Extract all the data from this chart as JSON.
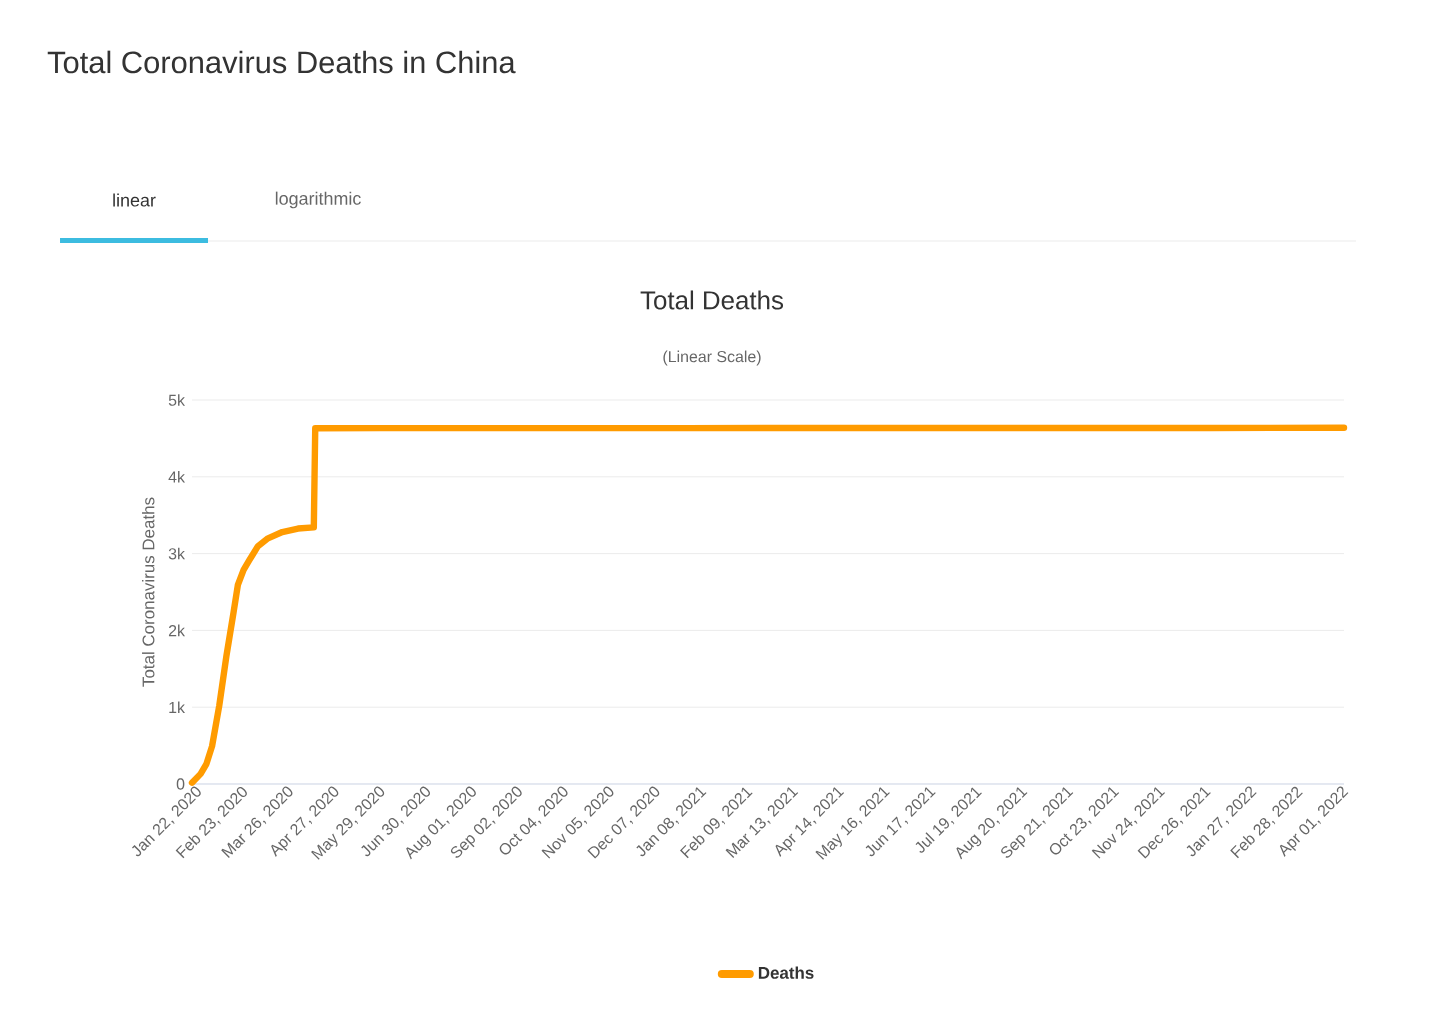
{
  "chart_data": {
    "type": "line",
    "title": "Total Deaths",
    "subtitle": "(Linear Scale)",
    "ylabel": "Total Coronavirus Deaths",
    "annotations": [
      "Total Coronavirus Deaths in China",
      "linear",
      "logarithmic"
    ],
    "x": [
      "2020-01-22",
      "2020-01-28",
      "2020-02-01",
      "2020-02-05",
      "2020-02-10",
      "2020-02-15",
      "2020-02-20",
      "2020-02-23",
      "2020-02-27",
      "2020-03-02",
      "2020-03-08",
      "2020-03-15",
      "2020-03-25",
      "2020-04-05",
      "2020-04-16",
      "2020-04-17",
      "2020-06-01",
      "2021-01-01",
      "2021-06-01",
      "2022-01-01",
      "2022-04-05"
    ],
    "series": [
      {
        "name": "Deaths",
        "color": "#ff9b00",
        "values": [
          17,
          132,
          259,
          493,
          1018,
          1666,
          2236,
          2592,
          2788,
          2915,
          3097,
          3199,
          3281,
          3326,
          3342,
          4632,
          4634,
          4634,
          4636,
          4636,
          4638
        ]
      }
    ],
    "xlim": [
      "2020-01-22",
      "2022-04-05"
    ],
    "xticks": [
      {
        "value": "2020-01-22",
        "label": "Jan 22, 2020"
      },
      {
        "value": "2020-02-23",
        "label": "Feb 23, 2020"
      },
      {
        "value": "2020-03-26",
        "label": "Mar 26, 2020"
      },
      {
        "value": "2020-04-27",
        "label": "Apr 27, 2020"
      },
      {
        "value": "2020-05-29",
        "label": "May 29, 2020"
      },
      {
        "value": "2020-06-30",
        "label": "Jun 30, 2020"
      },
      {
        "value": "2020-08-01",
        "label": "Aug 01, 2020"
      },
      {
        "value": "2020-09-02",
        "label": "Sep 02, 2020"
      },
      {
        "value": "2020-10-04",
        "label": "Oct 04, 2020"
      },
      {
        "value": "2020-11-05",
        "label": "Nov 05, 2020"
      },
      {
        "value": "2020-12-07",
        "label": "Dec 07, 2020"
      },
      {
        "value": "2021-01-08",
        "label": "Jan 08, 2021"
      },
      {
        "value": "2021-02-09",
        "label": "Feb 09, 2021"
      },
      {
        "value": "2021-03-13",
        "label": "Mar 13, 2021"
      },
      {
        "value": "2021-04-14",
        "label": "Apr 14, 2021"
      },
      {
        "value": "2021-05-16",
        "label": "May 16, 2021"
      },
      {
        "value": "2021-06-17",
        "label": "Jun 17, 2021"
      },
      {
        "value": "2021-07-19",
        "label": "Jul 19, 2021"
      },
      {
        "value": "2021-08-20",
        "label": "Aug 20, 2021"
      },
      {
        "value": "2021-09-21",
        "label": "Sep 21, 2021"
      },
      {
        "value": "2021-10-23",
        "label": "Oct 23, 2021"
      },
      {
        "value": "2021-11-24",
        "label": "Nov 24, 2021"
      },
      {
        "value": "2021-12-26",
        "label": "Dec 26, 2021"
      },
      {
        "value": "2022-01-27",
        "label": "Jan 27, 2022"
      },
      {
        "value": "2022-02-28",
        "label": "Feb 28, 2022"
      },
      {
        "value": "2022-04-01",
        "label": "Apr 01, 2022"
      }
    ],
    "ylim": [
      0,
      5000
    ],
    "yticks": [
      0,
      {
        "value": 1000,
        "label": "1k"
      },
      {
        "value": 2000,
        "label": "2k"
      },
      {
        "value": 3000,
        "label": "3k"
      },
      {
        "value": 4000,
        "label": "4k"
      },
      {
        "value": 5000,
        "label": "5k"
      }
    ],
    "grid": "y",
    "legend": "bottom",
    "marker": "none",
    "line_style": "solid"
  }
}
